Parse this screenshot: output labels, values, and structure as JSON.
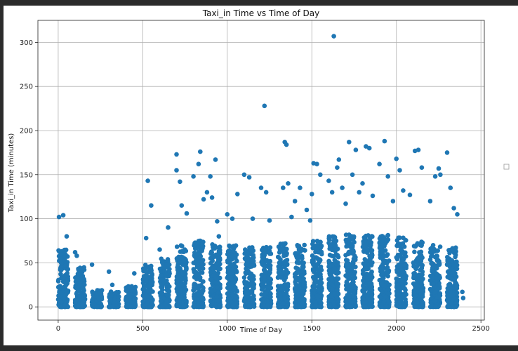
{
  "chart_data": {
    "type": "scatter",
    "title": "Taxi_in Time vs Time of Day",
    "xlabel": "Time of Day",
    "ylabel": "Taxi_in Time (minutes)",
    "xlim": [
      -120,
      2520
    ],
    "ylim": [
      -15,
      325
    ],
    "xticks": [
      0,
      500,
      1000,
      1500,
      2000,
      2500
    ],
    "yticks": [
      0,
      50,
      100,
      150,
      200,
      250,
      300
    ],
    "grid": true,
    "legend": "right (empty)",
    "color": "#1f77b4",
    "series": [
      {
        "bands": [
          {
            "x": [
              0,
              59
            ],
            "ymax": 65
          },
          {
            "x": [
              100,
              159
            ],
            "ymax": 45
          },
          {
            "x": [
              200,
              259
            ],
            "ymax": 20
          },
          {
            "x": [
              300,
              359
            ],
            "ymax": 18
          },
          {
            "x": [
              400,
              459
            ],
            "ymax": 25
          },
          {
            "x": [
              500,
              559
            ],
            "ymax": 48
          },
          {
            "x": [
              600,
              659
            ],
            "ymax": 55
          },
          {
            "x": [
              700,
              759
            ],
            "ymax": 70
          },
          {
            "x": [
              800,
              859
            ],
            "ymax": 75
          },
          {
            "x": [
              900,
              959
            ],
            "ymax": 72
          },
          {
            "x": [
              1000,
              1059
            ],
            "ymax": 70
          },
          {
            "x": [
              1100,
              1159
            ],
            "ymax": 68
          },
          {
            "x": [
              1200,
              1259
            ],
            "ymax": 68
          },
          {
            "x": [
              1300,
              1359
            ],
            "ymax": 72
          },
          {
            "x": [
              1400,
              1459
            ],
            "ymax": 72
          },
          {
            "x": [
              1500,
              1559
            ],
            "ymax": 75
          },
          {
            "x": [
              1600,
              1659
            ],
            "ymax": 80
          },
          {
            "x": [
              1700,
              1759
            ],
            "ymax": 82
          },
          {
            "x": [
              1800,
              1859
            ],
            "ymax": 82
          },
          {
            "x": [
              1900,
              1959
            ],
            "ymax": 82
          },
          {
            "x": [
              2000,
              2059
            ],
            "ymax": 80
          },
          {
            "x": [
              2100,
              2159
            ],
            "ymax": 75
          },
          {
            "x": [
              2200,
              2259
            ],
            "ymax": 70
          },
          {
            "x": [
              2300,
              2359
            ],
            "ymax": 68
          }
        ],
        "outliers": [
          [
            5,
            102
          ],
          [
            30,
            104
          ],
          [
            50,
            80
          ],
          [
            100,
            62
          ],
          [
            110,
            58
          ],
          [
            150,
            42
          ],
          [
            200,
            48
          ],
          [
            300,
            40
          ],
          [
            320,
            25
          ],
          [
            450,
            38
          ],
          [
            530,
            143
          ],
          [
            550,
            115
          ],
          [
            520,
            78
          ],
          [
            600,
            65
          ],
          [
            650,
            90
          ],
          [
            700,
            173
          ],
          [
            700,
            155
          ],
          [
            720,
            142
          ],
          [
            730,
            115
          ],
          [
            760,
            106
          ],
          [
            800,
            148
          ],
          [
            830,
            162
          ],
          [
            840,
            176
          ],
          [
            860,
            122
          ],
          [
            880,
            130
          ],
          [
            900,
            148
          ],
          [
            910,
            124
          ],
          [
            930,
            167
          ],
          [
            940,
            97
          ],
          [
            950,
            80
          ],
          [
            1000,
            105
          ],
          [
            1030,
            100
          ],
          [
            1060,
            128
          ],
          [
            1100,
            150
          ],
          [
            1130,
            147
          ],
          [
            1150,
            100
          ],
          [
            1200,
            135
          ],
          [
            1220,
            228
          ],
          [
            1230,
            130
          ],
          [
            1250,
            98
          ],
          [
            1330,
            135
          ],
          [
            1340,
            187
          ],
          [
            1350,
            184
          ],
          [
            1360,
            140
          ],
          [
            1380,
            102
          ],
          [
            1400,
            120
          ],
          [
            1430,
            135
          ],
          [
            1470,
            110
          ],
          [
            1490,
            98
          ],
          [
            1500,
            128
          ],
          [
            1510,
            163
          ],
          [
            1530,
            162
          ],
          [
            1550,
            150
          ],
          [
            1600,
            143
          ],
          [
            1620,
            130
          ],
          [
            1630,
            307
          ],
          [
            1650,
            158
          ],
          [
            1660,
            167
          ],
          [
            1680,
            135
          ],
          [
            1700,
            117
          ],
          [
            1720,
            187
          ],
          [
            1740,
            150
          ],
          [
            1760,
            178
          ],
          [
            1780,
            130
          ],
          [
            1800,
            140
          ],
          [
            1820,
            182
          ],
          [
            1840,
            180
          ],
          [
            1860,
            126
          ],
          [
            1900,
            162
          ],
          [
            1930,
            188
          ],
          [
            1950,
            148
          ],
          [
            1980,
            120
          ],
          [
            2000,
            168
          ],
          [
            2020,
            155
          ],
          [
            2040,
            132
          ],
          [
            2080,
            127
          ],
          [
            2110,
            177
          ],
          [
            2130,
            178
          ],
          [
            2150,
            158
          ],
          [
            2200,
            120
          ],
          [
            2230,
            148
          ],
          [
            2250,
            157
          ],
          [
            2260,
            150
          ],
          [
            2300,
            175
          ],
          [
            2320,
            135
          ],
          [
            2340,
            112
          ],
          [
            2360,
            105
          ],
          [
            2390,
            17
          ],
          [
            2395,
            10
          ]
        ]
      }
    ]
  }
}
